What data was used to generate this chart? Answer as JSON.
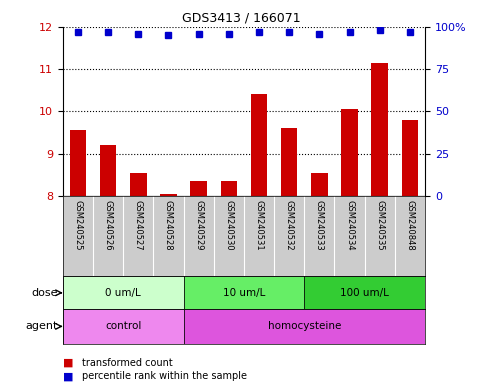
{
  "title": "GDS3413 / 166071",
  "samples": [
    "GSM240525",
    "GSM240526",
    "GSM240527",
    "GSM240528",
    "GSM240529",
    "GSM240530",
    "GSM240531",
    "GSM240532",
    "GSM240533",
    "GSM240534",
    "GSM240535",
    "GSM240848"
  ],
  "bar_values": [
    9.55,
    9.2,
    8.55,
    8.05,
    8.35,
    8.35,
    10.4,
    9.6,
    8.55,
    10.05,
    11.15,
    9.8
  ],
  "percentile_values": [
    97,
    97,
    96,
    95,
    96,
    96,
    97,
    97,
    96,
    97,
    98,
    97
  ],
  "bar_color": "#cc0000",
  "dot_color": "#0000cc",
  "ylim_left": [
    8,
    12
  ],
  "ylim_right": [
    0,
    100
  ],
  "yticks_left": [
    8,
    9,
    10,
    11,
    12
  ],
  "yticks_right": [
    0,
    25,
    50,
    75,
    100
  ],
  "ytick_labels_right": [
    "0",
    "25",
    "50",
    "75",
    "100%"
  ],
  "dose_groups": [
    {
      "label": "0 um/L",
      "start": 0,
      "end": 4,
      "color": "#ccffcc"
    },
    {
      "label": "10 um/L",
      "start": 4,
      "end": 8,
      "color": "#66ee66"
    },
    {
      "label": "100 um/L",
      "start": 8,
      "end": 12,
      "color": "#33cc33"
    }
  ],
  "agent_groups": [
    {
      "label": "control",
      "start": 0,
      "end": 4,
      "color": "#ee88ee"
    },
    {
      "label": "homocysteine",
      "start": 4,
      "end": 12,
      "color": "#dd55dd"
    }
  ],
  "dose_label": "dose",
  "agent_label": "agent",
  "legend_bar_label": "transformed count",
  "legend_dot_label": "percentile rank within the sample",
  "xlabel_area_bg": "#cccccc",
  "plot_bg": "#ffffff",
  "tick_label_color_left": "#cc0000",
  "tick_label_color_right": "#0000cc"
}
